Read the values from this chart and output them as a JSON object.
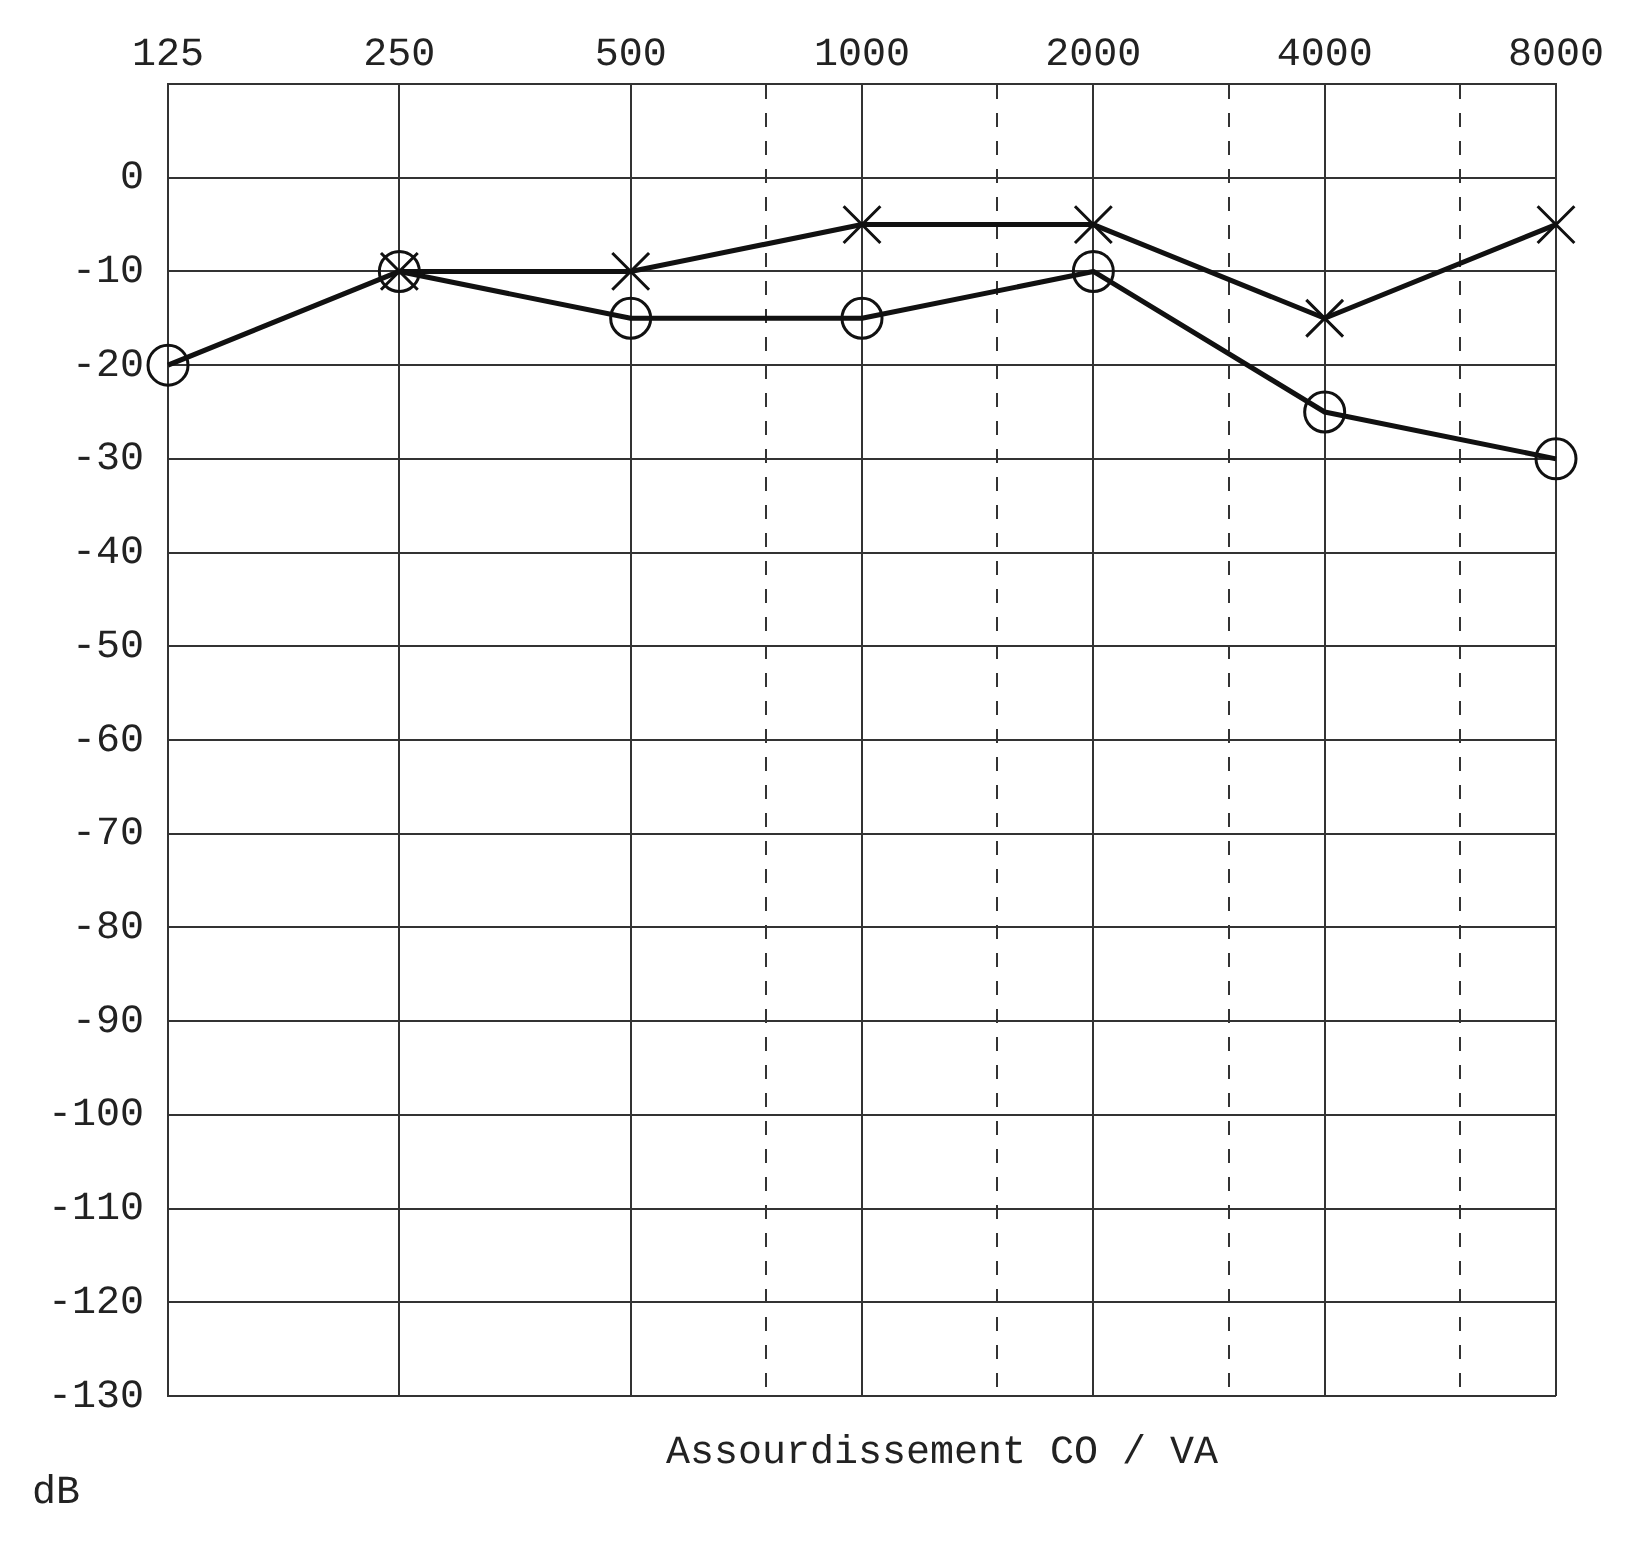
{
  "chart_data": {
    "type": "line",
    "xlabel": "Assourdissement CO / VA",
    "annotations": [
      "dB"
    ],
    "log": "x",
    "xlim": [
      125,
      8000
    ],
    "xticks": [
      125,
      250,
      500,
      {
        "value": 750,
        "label": null
      },
      1000,
      {
        "value": 1500,
        "label": null
      },
      2000,
      {
        "value": 3000,
        "label": null
      },
      4000,
      {
        "value": 6000,
        "label": null
      },
      8000
    ],
    "ylim": [
      -130,
      10
    ],
    "yticks": [
      0,
      -10,
      -20,
      -30,
      -40,
      -50,
      -60,
      -70,
      -80,
      -90,
      -100,
      -110,
      -120,
      -130
    ],
    "grid": true,
    "legend": false,
    "line_style": "solid",
    "series": [
      {
        "color": "#111111",
        "marker": "circle",
        "x": [
          125,
          250,
          500,
          1000,
          2000,
          4000,
          8000
        ],
        "values": [
          -20,
          -10,
          -15,
          -15,
          -10,
          -25,
          -30
        ]
      },
      {
        "color": "#111111",
        "marker": "cross",
        "x": [
          250,
          500,
          1000,
          2000,
          4000,
          8000
        ],
        "values": [
          -10,
          -10,
          -5,
          -5,
          -15,
          -5
        ]
      }
    ]
  }
}
